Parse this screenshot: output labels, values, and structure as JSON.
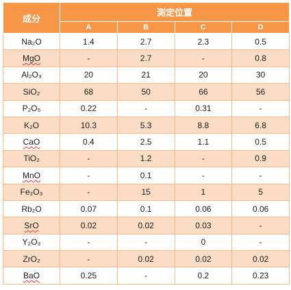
{
  "header": {
    "component_label": "成分",
    "position_label": "測定位置",
    "columns": [
      "A",
      "B",
      "C",
      "D"
    ]
  },
  "rows": [
    {
      "name": "Na₂O",
      "spell_flag": false,
      "values": [
        "1.4",
        "2.7",
        "2.3",
        "0.5"
      ]
    },
    {
      "name": "MgO",
      "spell_flag": true,
      "values": [
        "-",
        "2.7",
        "-",
        "0.8"
      ]
    },
    {
      "name": "Al₂O₃",
      "spell_flag": false,
      "values": [
        "20",
        "21",
        "20",
        "30"
      ]
    },
    {
      "name": "SiO₂",
      "spell_flag": false,
      "values": [
        "68",
        "50",
        "66",
        "56"
      ]
    },
    {
      "name": "P₂O₅",
      "spell_flag": false,
      "values": [
        "0.22",
        "-",
        "0.31",
        "-"
      ]
    },
    {
      "name": "K₂O",
      "spell_flag": false,
      "values": [
        "10.3",
        "5.3",
        "8.8",
        "6.8"
      ]
    },
    {
      "name": "CaO",
      "spell_flag": true,
      "values": [
        "0.4",
        "2.5",
        "1.1",
        "0.5"
      ]
    },
    {
      "name": "TiO₂",
      "spell_flag": false,
      "values": [
        "-",
        "1.2",
        "-",
        "0.9"
      ]
    },
    {
      "name": "MnO",
      "spell_flag": true,
      "values": [
        "-",
        "0.1",
        "-",
        "-"
      ]
    },
    {
      "name": "Fe₂O₃",
      "spell_flag": false,
      "values": [
        "-",
        "15",
        "1",
        "5"
      ]
    },
    {
      "name": "Rb₂O",
      "spell_flag": false,
      "values": [
        "0.07",
        "0.1",
        "0.06",
        "0.06"
      ]
    },
    {
      "name": "SrO",
      "spell_flag": true,
      "values": [
        "0.02",
        "0.02",
        "0.03",
        "-"
      ]
    },
    {
      "name": "Y₂O₃",
      "spell_flag": false,
      "values": [
        "-",
        "-",
        "0",
        "-"
      ]
    },
    {
      "name": "ZrO₂",
      "spell_flag": false,
      "values": [
        "-",
        "0.02",
        "0.02",
        "0.02"
      ]
    },
    {
      "name": "BaO",
      "spell_flag": true,
      "values": [
        "0.25",
        "-",
        "0.2",
        "0.23"
      ]
    }
  ],
  "colors": {
    "header_bg": "#f79646",
    "header_text": "#ffffff",
    "band_row_bg": "#fbdcc5",
    "plain_row_bg": "#ffffff",
    "grid_line": "#f8b98a",
    "spellcheck_underline": "#d83b3b"
  }
}
